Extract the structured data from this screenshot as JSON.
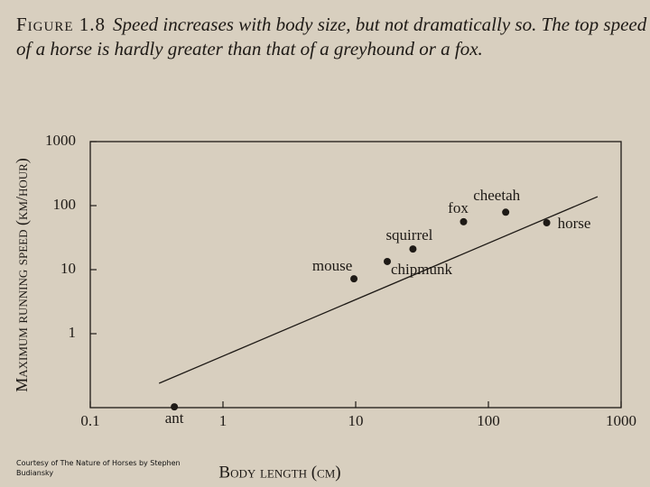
{
  "chart_data": {
    "type": "scatter",
    "title": "Figure 1.8",
    "subtitle": "Speed increases with body size, but not dramatically so. The top speed of a horse is hardly greater than that of a greyhound or a fox.",
    "x_label": "Body length (cm)",
    "y_label": "Maximum running speed (km/hour)",
    "credit": "Courtesy of The Nature of Horses by Stephen Budiansky",
    "log_x": true,
    "log_y": true,
    "xlim": [
      0.1,
      1000
    ],
    "ylim": [
      0.07,
      1000
    ],
    "xticks": [
      0.1,
      1,
      10,
      100,
      1000
    ],
    "yticks": [
      1,
      10,
      100,
      1000
    ],
    "color": "#1e1a16",
    "points": {
      "names": [
        "ant",
        "mouse",
        "chipmunk",
        "squirrel",
        "fox",
        "cheetah",
        "horse"
      ],
      "x": [
        0.43,
        9.7,
        17.3,
        27,
        65,
        135,
        275
      ],
      "y": [
        0.072,
        7.2,
        13.4,
        21,
        56,
        79,
        54
      ]
    },
    "trend_line": {
      "x": [
        0.33,
        665
      ],
      "y": [
        0.168,
        138
      ]
    }
  }
}
